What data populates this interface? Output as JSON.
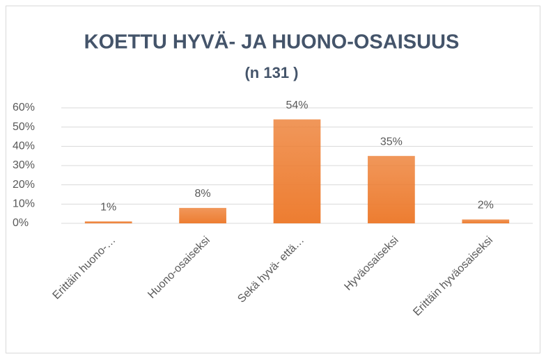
{
  "chart_data": {
    "type": "bar",
    "title": "KOETTU HYVÄ- JA HUONO-OSAISUUS",
    "subtitle": "(n 131 )",
    "categories": [
      "Erittäin huono-…",
      "Huono-osaiseksi",
      "Sekä hyvä- että…",
      "Hyväosaiseksi",
      "Erittäin hyväosaiseksi"
    ],
    "values": [
      1,
      8,
      54,
      35,
      2
    ],
    "value_labels": [
      "1%",
      "8%",
      "54%",
      "35%",
      "2%"
    ],
    "color": "#ed7d31",
    "ylim": [
      0,
      60
    ],
    "yticks": [
      {
        "value": 0,
        "label": "0%"
      },
      {
        "value": 10,
        "label": "10%"
      },
      {
        "value": 20,
        "label": "20%"
      },
      {
        "value": 30,
        "label": "30%"
      },
      {
        "value": 40,
        "label": "40%"
      },
      {
        "value": 50,
        "label": "50%"
      },
      {
        "value": 60,
        "label": "60%"
      }
    ],
    "grid": true
  }
}
